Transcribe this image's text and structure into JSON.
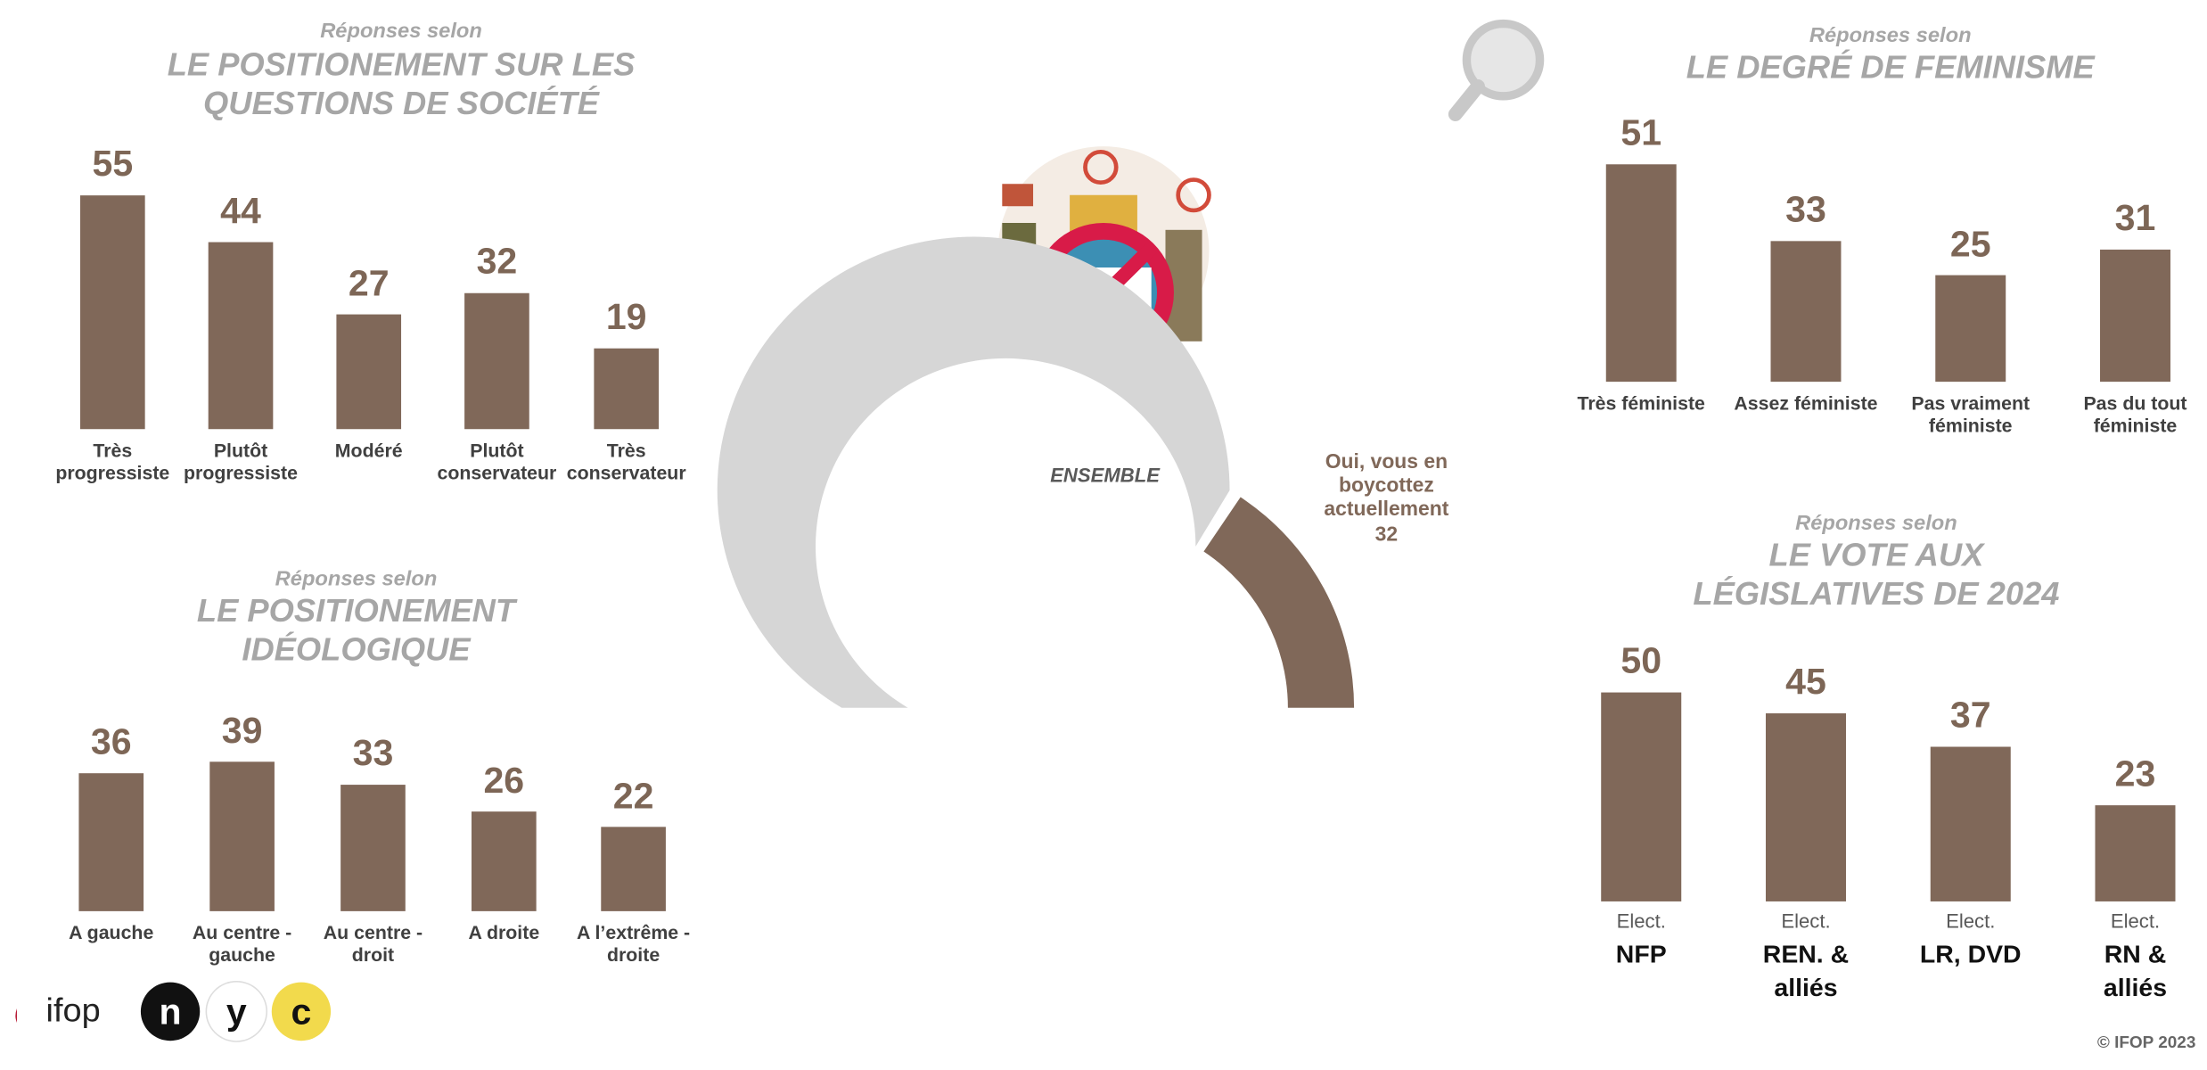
{
  "chart_data": [
    {
      "type": "bar",
      "subtitle": "Réponses selon",
      "title": [
        "LE POSITIONEMENT SUR LES",
        "QUESTIONS DE SOCIÉTÉ"
      ],
      "categories": [
        [
          "Très progressiste"
        ],
        [
          "Plutôt progressiste"
        ],
        [
          "Modéré"
        ],
        [
          "Plutôt conservateur"
        ],
        [
          "Très conservateur"
        ]
      ],
      "values": [
        55,
        44,
        27,
        32,
        19
      ],
      "color": "#806859"
    },
    {
      "type": "bar",
      "subtitle": "Réponses selon",
      "title": [
        "LE POSITIONEMENT",
        "IDÉOLOGIQUE"
      ],
      "categories": [
        [
          "A gauche"
        ],
        [
          "Au centre - gauche"
        ],
        [
          "Au centre - droit"
        ],
        [
          "A droite"
        ],
        [
          "A l’extrême - droite"
        ]
      ],
      "values": [
        36,
        39,
        33,
        26,
        22
      ],
      "color": "#806859"
    },
    {
      "type": "donut",
      "title": "ENSEMBLE",
      "categories": [
        "Oui, vous en boycottez actuellement",
        null
      ],
      "values": [
        32,
        68
      ],
      "colors": [
        "#806859",
        "#d6d6d6"
      ]
    },
    {
      "type": "bar",
      "subtitle": "Réponses selon",
      "title": [
        "LE DEGRÉ DE FEMINISME"
      ],
      "categories": [
        [
          "Très féministe"
        ],
        [
          "Assez féministe"
        ],
        [
          "Pas vraiment féministe"
        ],
        [
          "Pas du tout féministe"
        ]
      ],
      "values": [
        51,
        33,
        25,
        31
      ],
      "color": "#806859"
    },
    {
      "type": "bar",
      "subtitle": "Réponses selon",
      "title": [
        "LE VOTE AUX",
        "LÉGISLATIVES DE 2024"
      ],
      "categories": [
        [
          "Elect.",
          "NFP"
        ],
        [
          "Elect.",
          "REN. & alliés"
        ],
        [
          "Elect.",
          "LR, DVD"
        ],
        [
          "Elect.",
          "RN & alliés"
        ]
      ],
      "values": [
        50,
        45,
        37,
        23
      ],
      "color": "#806859"
    }
  ],
  "footer": {
    "copyright": "© IFOP 2023",
    "logos": [
      "ifop",
      "n",
      "y",
      "c"
    ]
  }
}
